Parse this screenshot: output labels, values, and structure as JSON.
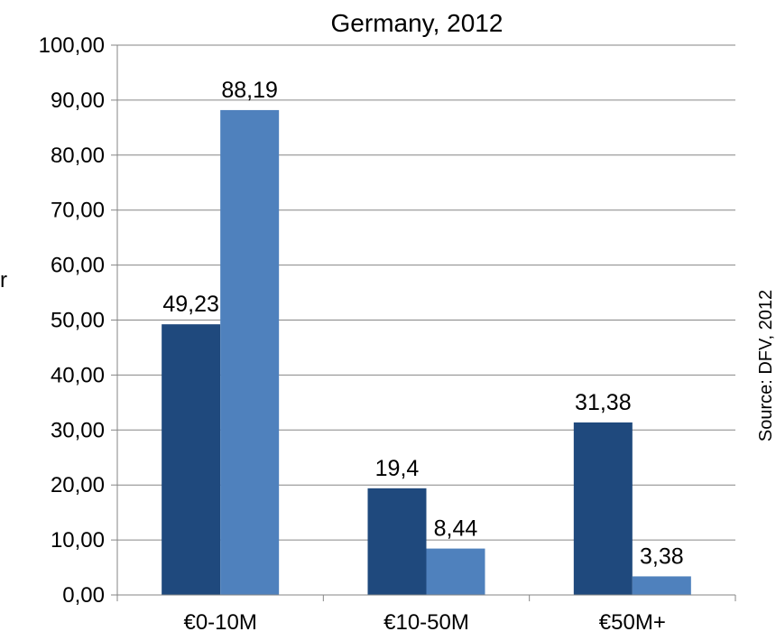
{
  "chart_data": {
    "type": "bar",
    "title": "Germany, 2012",
    "ylabel": "r",
    "xlabel": "",
    "categories": [
      "€0-10M",
      "€10-50M",
      "€50M+"
    ],
    "series": [
      {
        "values": [
          49.23,
          19.4,
          31.38
        ],
        "labels": [
          "49,23",
          "19,4",
          "31,38"
        ],
        "color": "#1f497d"
      },
      {
        "values": [
          88.19,
          8.44,
          3.38
        ],
        "labels": [
          "88,19",
          "8,44",
          "3,38"
        ],
        "color": "#4f81bd"
      }
    ],
    "ylim": [
      0,
      100
    ],
    "yticks": [
      "0,00",
      "10,00",
      "20,00",
      "30,00",
      "40,00",
      "50,00",
      "60,00",
      "70,00",
      "80,00",
      "90,00",
      "100,00"
    ],
    "grid": true,
    "source": "Source: DFV, 2012"
  }
}
